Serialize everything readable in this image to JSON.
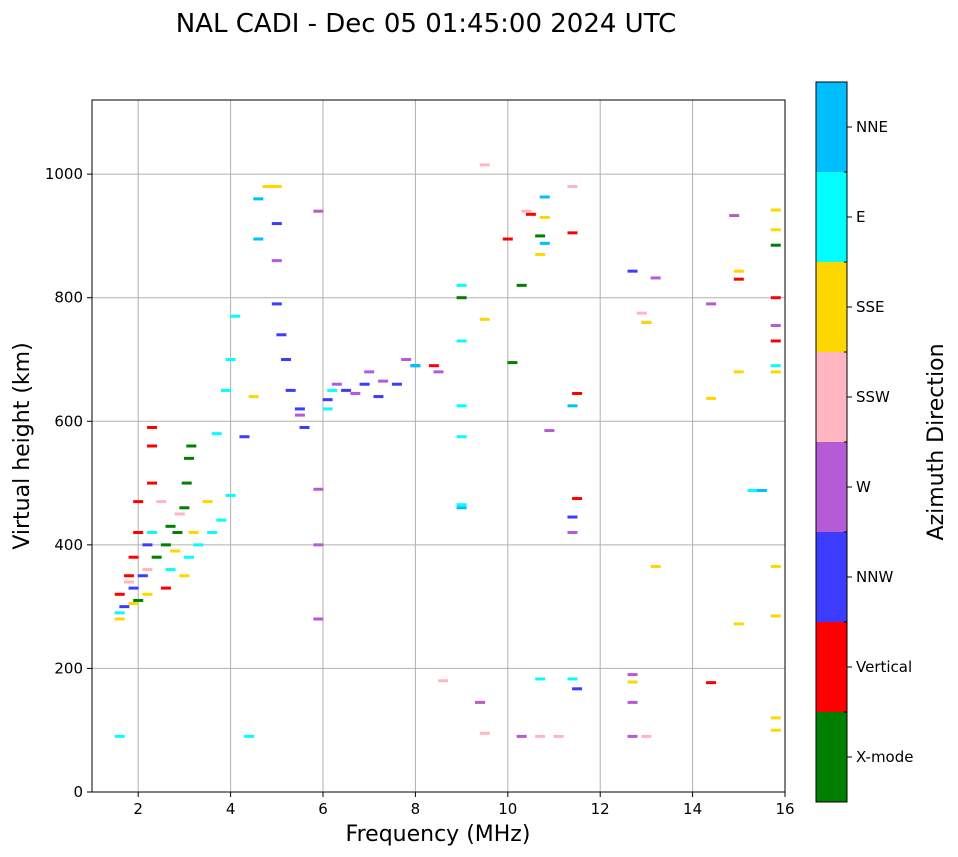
{
  "chart_data": {
    "type": "scatter",
    "title": "NAL CADI - Dec 05 01:45:00 2024 UTC",
    "xlabel": "Frequency (MHz)",
    "ylabel": "Virtual height (km)",
    "xlim": [
      1,
      16
    ],
    "ylim": [
      0,
      1120
    ],
    "xticks": [
      2,
      4,
      6,
      8,
      10,
      12,
      14,
      16
    ],
    "yticks": [
      0,
      200,
      400,
      600,
      800,
      1000
    ],
    "grid": true,
    "colorbar": {
      "label": "Azimuth Direction",
      "categories": [
        {
          "name": "X-mode",
          "color": "#008000"
        },
        {
          "name": "Vertical",
          "color": "#ff0000"
        },
        {
          "name": "NNW",
          "color": "#3c3cff"
        },
        {
          "name": "W",
          "color": "#b55bd6"
        },
        {
          "name": "SSW",
          "color": "#ffb6c1"
        },
        {
          "name": "SSE",
          "color": "#ffd700"
        },
        {
          "name": "E",
          "color": "#00ffff"
        },
        {
          "name": "NNE",
          "color": "#00bfff"
        }
      ]
    },
    "series": [
      {
        "name": "X-mode",
        "points": [
          [
            2.0,
            310
          ],
          [
            2.4,
            380
          ],
          [
            2.7,
            430
          ],
          [
            3.0,
            460
          ],
          [
            3.05,
            500
          ],
          [
            3.1,
            540
          ],
          [
            3.15,
            560
          ],
          [
            2.85,
            420
          ],
          [
            2.6,
            400
          ],
          [
            10.7,
            900
          ],
          [
            10.3,
            820
          ],
          [
            10.1,
            695
          ],
          [
            9.0,
            800
          ],
          [
            15.8,
            885
          ]
        ]
      },
      {
        "name": "Vertical",
        "points": [
          [
            1.6,
            320
          ],
          [
            1.8,
            350
          ],
          [
            1.9,
            380
          ],
          [
            2.0,
            420
          ],
          [
            2.0,
            470
          ],
          [
            2.3,
            500
          ],
          [
            2.3,
            560
          ],
          [
            2.3,
            590
          ],
          [
            2.6,
            330
          ],
          [
            8.4,
            690
          ],
          [
            10.0,
            895
          ],
          [
            10.5,
            935
          ],
          [
            11.4,
            905
          ],
          [
            11.5,
            645
          ],
          [
            11.5,
            475
          ],
          [
            14.4,
            177
          ],
          [
            15.0,
            830
          ],
          [
            15.8,
            730
          ],
          [
            15.8,
            800
          ]
        ]
      },
      {
        "name": "NNW",
        "points": [
          [
            1.7,
            300
          ],
          [
            1.9,
            330
          ],
          [
            2.1,
            350
          ],
          [
            2.2,
            400
          ],
          [
            4.3,
            575
          ],
          [
            5.0,
            920
          ],
          [
            5.0,
            790
          ],
          [
            5.1,
            740
          ],
          [
            5.2,
            700
          ],
          [
            5.3,
            650
          ],
          [
            5.5,
            620
          ],
          [
            5.6,
            590
          ],
          [
            6.1,
            635
          ],
          [
            6.5,
            650
          ],
          [
            6.9,
            660
          ],
          [
            7.2,
            640
          ],
          [
            7.6,
            660
          ],
          [
            8.0,
            690
          ],
          [
            11.5,
            167
          ],
          [
            11.4,
            445
          ],
          [
            12.7,
            843
          ],
          [
            13.0,
            760
          ]
        ]
      },
      {
        "name": "W",
        "points": [
          [
            5.0,
            860
          ],
          [
            5.5,
            610
          ],
          [
            6.3,
            660
          ],
          [
            6.7,
            645
          ],
          [
            7.0,
            680
          ],
          [
            7.3,
            665
          ],
          [
            7.8,
            700
          ],
          [
            8.5,
            680
          ],
          [
            5.9,
            940
          ],
          [
            5.9,
            490
          ],
          [
            5.9,
            400
          ],
          [
            5.9,
            280
          ],
          [
            9.4,
            145
          ],
          [
            10.3,
            90
          ],
          [
            10.9,
            585
          ],
          [
            11.4,
            420
          ],
          [
            12.7,
            145
          ],
          [
            12.7,
            190
          ],
          [
            12.7,
            90
          ],
          [
            13.2,
            832
          ],
          [
            14.4,
            790
          ],
          [
            14.9,
            933
          ],
          [
            15.8,
            755
          ]
        ]
      },
      {
        "name": "SSW",
        "points": [
          [
            1.8,
            340
          ],
          [
            2.2,
            360
          ],
          [
            2.5,
            470
          ],
          [
            2.9,
            450
          ],
          [
            8.6,
            180
          ],
          [
            9.5,
            1015
          ],
          [
            9.5,
            95
          ],
          [
            10.7,
            90
          ],
          [
            11.1,
            90
          ],
          [
            11.4,
            980
          ],
          [
            12.9,
            775
          ],
          [
            13.0,
            90
          ],
          [
            10.4,
            940
          ]
        ]
      },
      {
        "name": "SSE",
        "points": [
          [
            1.6,
            280
          ],
          [
            1.9,
            305
          ],
          [
            2.2,
            320
          ],
          [
            2.8,
            390
          ],
          [
            3.0,
            350
          ],
          [
            3.2,
            420
          ],
          [
            3.5,
            470
          ],
          [
            4.5,
            640
          ],
          [
            4.8,
            980
          ],
          [
            5.0,
            980
          ],
          [
            9.5,
            765
          ],
          [
            10.8,
            930
          ],
          [
            10.7,
            870
          ],
          [
            12.7,
            178
          ],
          [
            13.0,
            760
          ],
          [
            13.2,
            365
          ],
          [
            14.4,
            637
          ],
          [
            15.0,
            843
          ],
          [
            15.0,
            680
          ],
          [
            15.0,
            272
          ],
          [
            15.8,
            942
          ],
          [
            15.8,
            910
          ],
          [
            15.8,
            365
          ],
          [
            15.8,
            285
          ],
          [
            15.8,
            120
          ],
          [
            15.8,
            100
          ],
          [
            15.8,
            680
          ]
        ]
      },
      {
        "name": "E",
        "points": [
          [
            1.6,
            290
          ],
          [
            1.6,
            90
          ],
          [
            2.3,
            420
          ],
          [
            2.7,
            360
          ],
          [
            3.1,
            380
          ],
          [
            3.3,
            400
          ],
          [
            3.6,
            420
          ],
          [
            3.8,
            440
          ],
          [
            4.0,
            480
          ],
          [
            3.7,
            580
          ],
          [
            3.9,
            650
          ],
          [
            4.0,
            700
          ],
          [
            4.1,
            770
          ],
          [
            4.4,
            90
          ],
          [
            6.1,
            620
          ],
          [
            6.2,
            650
          ],
          [
            9.0,
            820
          ],
          [
            9.0,
            730
          ],
          [
            9.0,
            625
          ],
          [
            9.0,
            575
          ],
          [
            9.0,
            465
          ],
          [
            10.7,
            183
          ],
          [
            11.4,
            183
          ],
          [
            15.3,
            488
          ],
          [
            15.8,
            690
          ]
        ]
      },
      {
        "name": "NNE",
        "points": [
          [
            4.6,
            960
          ],
          [
            4.6,
            895
          ],
          [
            8.0,
            690
          ],
          [
            9.0,
            460
          ],
          [
            10.8,
            963
          ],
          [
            10.8,
            888
          ],
          [
            11.4,
            625
          ],
          [
            15.5,
            488
          ]
        ]
      }
    ]
  }
}
